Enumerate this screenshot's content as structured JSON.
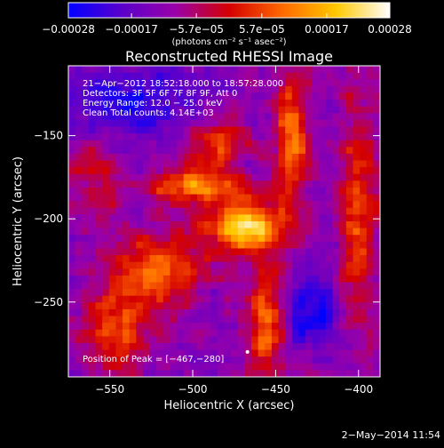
{
  "chart_data": {
    "type": "heatmap",
    "title": "Reconstructed RHESSI Image",
    "xlabel": "Heliocentric X (arcsec)",
    "ylabel": "Heliocentric Y (arcsec)",
    "xlim": [
      -575,
      -387
    ],
    "ylim": [
      -295,
      -108
    ],
    "x_ticks": [
      {
        "value": -550,
        "label": "−550"
      },
      {
        "value": -500,
        "label": "−500"
      },
      {
        "value": -450,
        "label": "−450"
      },
      {
        "value": -400,
        "label": "−400"
      }
    ],
    "y_ticks": [
      {
        "value": -150,
        "label": "−150"
      },
      {
        "value": -200,
        "label": "−200"
      },
      {
        "value": -250,
        "label": "−250"
      }
    ],
    "colorbar": {
      "range": [
        -0.00028,
        0.00028
      ],
      "ticks": [
        {
          "value": -0.00028,
          "label": "−0.00028"
        },
        {
          "value": -0.00017,
          "label": "−0.00017"
        },
        {
          "value": -5.7e-05,
          "label": "−5.7e−05"
        },
        {
          "value": 5.7e-05,
          "label": "5.7e−05"
        },
        {
          "value": 0.00017,
          "label": "0.00017"
        },
        {
          "value": 0.00028,
          "label": "0.00028"
        }
      ],
      "unit_label": "(photons cm⁻² s⁻¹ asec⁻²)",
      "colors": [
        "#0000ff",
        "#5a00cc",
        "#9a00a8",
        "#d40000",
        "#ff6a00",
        "#ffc800",
        "#ffffff"
      ]
    },
    "annotations": [
      "21−Apr−2012 18:52:18.000 to 18:57:28.000",
      "Detectors: 3F 5F 6F 7F 8F 9F, Att 0",
      "Energy Range: 12.0 − 25.0 keV",
      "Clean    Total counts: 4.14E+03"
    ],
    "peak_label": "Position of Peak = [−467,−280]",
    "peak_position": [
      -467,
      -280
    ],
    "grid": false
  },
  "footer": {
    "date": "2−May−2014 11:54"
  }
}
